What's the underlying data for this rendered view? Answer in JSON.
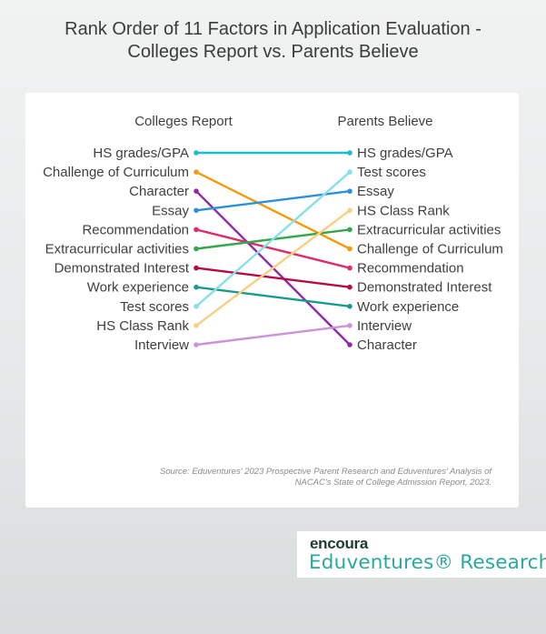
{
  "header": {
    "title_line1": "Rank Order of 11 Factors in Application Evaluation -",
    "title_line2": "Colleges Report vs. Parents Believe"
  },
  "source": {
    "line1": "Source: Eduventures' 2023 Prospective Parent Research and Eduventures' Analysis of",
    "line2": "NACAC's State of College Admission Report, 2023."
  },
  "logo": {
    "top": "encoura",
    "bottom": "Eduventures® Research"
  },
  "chart_data": {
    "type": "slope",
    "left_label": "Colleges Report",
    "right_label": "Parents Believe",
    "factors": [
      {
        "name": "HS grades/GPA",
        "colleges_rank": 1,
        "parents_rank": 1,
        "color": "#1bbbd0"
      },
      {
        "name": "Challenge of Curriculum",
        "colleges_rank": 2,
        "parents_rank": 6,
        "color": "#f59a0a"
      },
      {
        "name": "Character",
        "colleges_rank": 3,
        "parents_rank": 11,
        "color": "#8e2aa6"
      },
      {
        "name": "Essay",
        "colleges_rank": 4,
        "parents_rank": 3,
        "color": "#2a8fe0"
      },
      {
        "name": "Recommendation",
        "colleges_rank": 5,
        "parents_rank": 7,
        "color": "#de2b6b"
      },
      {
        "name": "Extracurricular activities",
        "colleges_rank": 6,
        "parents_rank": 5,
        "color": "#31a84a"
      },
      {
        "name": "Demonstrated Interest",
        "colleges_rank": 7,
        "parents_rank": 8,
        "color": "#b50b45"
      },
      {
        "name": "Work experience",
        "colleges_rank": 8,
        "parents_rank": 9,
        "color": "#189a8a"
      },
      {
        "name": "Test scores",
        "colleges_rank": 9,
        "parents_rank": 2,
        "color": "#87dfe9"
      },
      {
        "name": "HS Class Rank",
        "colleges_rank": 10,
        "parents_rank": 4,
        "color": "#f9ce86"
      },
      {
        "name": "Interview",
        "colleges_rank": 11,
        "parents_rank": 10,
        "color": "#cc93da"
      }
    ]
  }
}
